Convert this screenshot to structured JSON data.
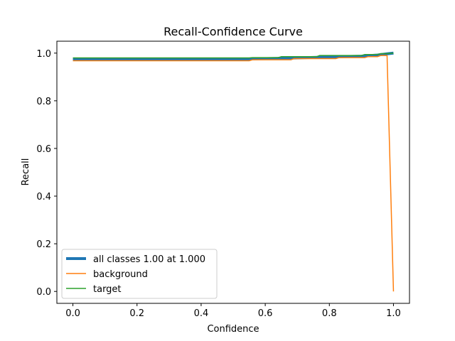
{
  "chart_data": {
    "type": "line",
    "title": "Recall-Confidence Curve",
    "xlabel": "Confidence",
    "ylabel": "Recall",
    "xlim": [
      -0.05,
      1.05
    ],
    "ylim": [
      -0.05,
      1.05
    ],
    "x_ticks": [
      0.0,
      0.2,
      0.4,
      0.6,
      0.8,
      1.0
    ],
    "y_ticks": [
      0.0,
      0.2,
      0.4,
      0.6,
      0.8,
      1.0
    ],
    "x_tick_labels": [
      "0.0",
      "0.2",
      "0.4",
      "0.6",
      "0.8",
      "1.0"
    ],
    "y_tick_labels": [
      "0.0",
      "0.2",
      "0.4",
      "0.6",
      "0.8",
      "1.0"
    ],
    "grid": false,
    "legend_position": "lower-left",
    "series": [
      {
        "name": "all classes 1.00 at 1.000",
        "color": "#1f77b4",
        "thick": true,
        "x": [
          0.0,
          0.55,
          0.56,
          0.65,
          0.7,
          0.78,
          0.9,
          0.95,
          0.98,
          1.0
        ],
        "y": [
          0.974,
          0.974,
          0.976,
          0.978,
          0.98,
          0.983,
          0.987,
          0.992,
          0.997,
          1.0
        ]
      },
      {
        "name": "background",
        "color": "#ff7f0e",
        "thick": false,
        "x": [
          0.0,
          0.55,
          0.56,
          0.68,
          0.69,
          0.82,
          0.83,
          0.91,
          0.92,
          0.95,
          0.96,
          0.98,
          1.0
        ],
        "y": [
          0.968,
          0.968,
          0.972,
          0.972,
          0.977,
          0.977,
          0.981,
          0.981,
          0.985,
          0.985,
          0.99,
          0.99,
          0.0
        ]
      },
      {
        "name": "target",
        "color": "#2ca02c",
        "thick": false,
        "x": [
          0.0,
          0.55,
          0.56,
          0.64,
          0.65,
          0.76,
          0.77,
          0.9,
          0.91,
          0.95,
          0.96,
          0.98,
          1.0
        ],
        "y": [
          0.98,
          0.98,
          0.981,
          0.981,
          0.985,
          0.985,
          0.99,
          0.99,
          0.994,
          0.994,
          0.998,
          0.998,
          1.0
        ]
      }
    ]
  }
}
